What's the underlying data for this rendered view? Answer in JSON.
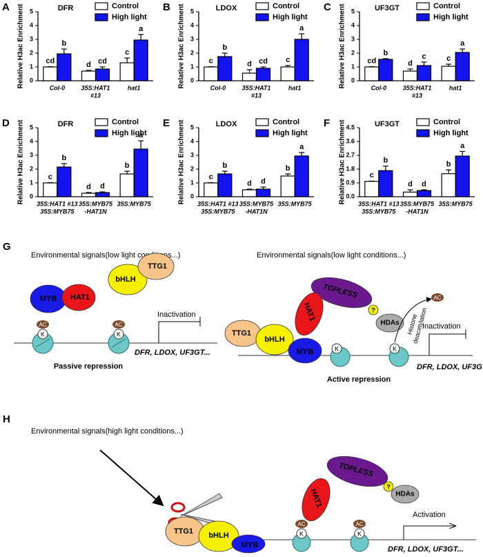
{
  "chart_data": [
    {
      "type": "bar",
      "panel": "A",
      "title": "DFR",
      "ylabel": "Relative H3ac Enrichment",
      "categories": [
        "Col-0",
        [
          "35S:HAT1",
          "#13"
        ],
        "hat1"
      ],
      "series": [
        {
          "name": "Control",
          "color": "#ffffff",
          "values": [
            1,
            0.7,
            1.3
          ],
          "errors": [
            0.02,
            0.05,
            0.35
          ],
          "letters": [
            "cd",
            "d",
            "c"
          ]
        },
        {
          "name": "High light",
          "color": "#1414f0",
          "values": [
            1.95,
            0.85,
            2.95
          ],
          "errors": [
            0.35,
            0.15,
            0.4
          ],
          "letters": [
            "b",
            "cd",
            "a"
          ]
        }
      ],
      "ylim": [
        0,
        5
      ],
      "yticks": [
        0,
        1,
        2,
        3,
        4,
        5
      ]
    },
    {
      "type": "bar",
      "panel": "B",
      "title": "LDOX",
      "ylabel": "Relative H3ac Enrichment",
      "categories": [
        "Col-0",
        [
          "35S:HAT1",
          "#13"
        ],
        "hat1"
      ],
      "series": [
        {
          "name": "Control",
          "color": "#ffffff",
          "values": [
            1,
            0.55,
            1
          ],
          "errors": [
            0.02,
            0.25,
            0.1
          ],
          "letters": [
            "c",
            "d",
            "c"
          ]
        },
        {
          "name": "High light",
          "color": "#1414f0",
          "values": [
            1.75,
            0.9,
            3
          ],
          "errors": [
            0.25,
            0.1,
            0.4
          ],
          "letters": [
            "b",
            "cd",
            "a"
          ]
        }
      ],
      "ylim": [
        0,
        5
      ],
      "yticks": [
        0,
        1,
        2,
        3,
        4,
        5
      ]
    },
    {
      "type": "bar",
      "panel": "C",
      "title": "UF3GT",
      "ylabel": "Relative H3ac Enrichment",
      "categories": [
        "Col-0",
        [
          "35S:HAT1",
          "#13"
        ],
        "hat1"
      ],
      "series": [
        {
          "name": "Control",
          "color": "#ffffff",
          "values": [
            1,
            0.7,
            1.05
          ],
          "errors": [
            0.02,
            0.15,
            0.15
          ],
          "letters": [
            "cd",
            "d",
            "c"
          ]
        },
        {
          "name": "High light",
          "color": "#1414f0",
          "values": [
            1.55,
            1.1,
            2.05
          ],
          "errors": [
            0.05,
            0.25,
            0.25
          ],
          "letters": [
            "b",
            "c",
            "a"
          ]
        }
      ],
      "ylim": [
        0,
        5
      ],
      "yticks": [
        0,
        1,
        2,
        3,
        4,
        5
      ]
    },
    {
      "type": "bar",
      "panel": "D",
      "title": "DFR",
      "ylabel": "Relative H3ac Enrichment",
      "categories": [
        [
          "35S:HAT1 #13",
          "35S:MYB75"
        ],
        [
          "35S:MYB75",
          "-HAT1N"
        ],
        "35S:MYB75"
      ],
      "series": [
        {
          "name": "Control",
          "color": "#ffffff",
          "values": [
            1,
            0.25,
            1.65
          ],
          "errors": [
            0.02,
            0.05,
            0.2
          ],
          "letters": [
            "c",
            "d",
            "b"
          ]
        },
        {
          "name": "High light",
          "color": "#1414f0",
          "values": [
            2.15,
            0.3,
            3.45
          ],
          "errors": [
            0.25,
            0.05,
            0.6
          ],
          "letters": [
            "b",
            "d",
            "a"
          ]
        }
      ],
      "ylim": [
        0,
        5
      ],
      "yticks": [
        0,
        1,
        2,
        3,
        4,
        5
      ]
    },
    {
      "type": "bar",
      "panel": "E",
      "title": "LDOX",
      "ylabel": "Relative H3ac Enrichment",
      "categories": [
        [
          "35S:HAT1 #13",
          "35S:MYB75"
        ],
        [
          "35S:MYB75",
          "-HAT1N"
        ],
        "35S:MYB75"
      ],
      "series": [
        {
          "name": "Control",
          "color": "#ffffff",
          "values": [
            1,
            0.5,
            1.5
          ],
          "errors": [
            0.02,
            0.05,
            0.15
          ],
          "letters": [
            "c",
            "d",
            "b"
          ]
        },
        {
          "name": "High light",
          "color": "#1414f0",
          "values": [
            1.65,
            0.55,
            2.95
          ],
          "errors": [
            0.2,
            0.15,
            0.25
          ],
          "letters": [
            "b",
            "d",
            "a"
          ]
        }
      ],
      "ylim": [
        0,
        5
      ],
      "yticks": [
        0,
        1,
        2,
        3,
        4,
        5
      ]
    },
    {
      "type": "bar",
      "panel": "F",
      "title": "UF3GT",
      "ylabel": "Relative H3ac Enrichment",
      "categories": [
        [
          "35S:HAT1 #13",
          "35S:MYB75"
        ],
        [
          "35S:MYB75",
          "-HAT1N"
        ],
        "35S:MYB75"
      ],
      "series": [
        {
          "name": "Control",
          "color": "#ffffff",
          "values": [
            1,
            0.3,
            1.5
          ],
          "errors": [
            0.02,
            0.15,
            0.25
          ],
          "letters": [
            "c",
            "d",
            "b"
          ]
        },
        {
          "name": "High light",
          "color": "#1414f0",
          "values": [
            1.7,
            0.4,
            2.65
          ],
          "errors": [
            0.3,
            0.05,
            0.3
          ],
          "letters": [
            "b",
            "d",
            "a"
          ]
        }
      ],
      "ylim": [
        0,
        4.5
      ],
      "yticks": [
        {
          "value": 0,
          "label": "0.0"
        },
        0.9,
        1.8,
        2.7,
        3.6,
        4.5
      ]
    }
  ],
  "diagrams": {
    "g": {
      "panel": "G",
      "signal_left": "Environmental signals(low light conditions...)",
      "signal_right": "Environmental signals(low light conditions...)",
      "myb": "MYB",
      "hat1": "HAT1",
      "bhlh": "bHLH",
      "ttg1": "TTG1",
      "ac": "AC",
      "k": "K",
      "inactivation": "Inactivation",
      "genes": "DFR, LDOX, UF3GT...",
      "passive": "Passive repression",
      "active": "Active repression",
      "topless": "TOPLESS",
      "question": "?",
      "hdas": "HDAs",
      "histone": "Histone",
      "deacetylation": "deacetylation"
    },
    "h": {
      "panel": "H",
      "signal": "Environmental signals(high light conditions...)",
      "activation": "Activation"
    }
  }
}
